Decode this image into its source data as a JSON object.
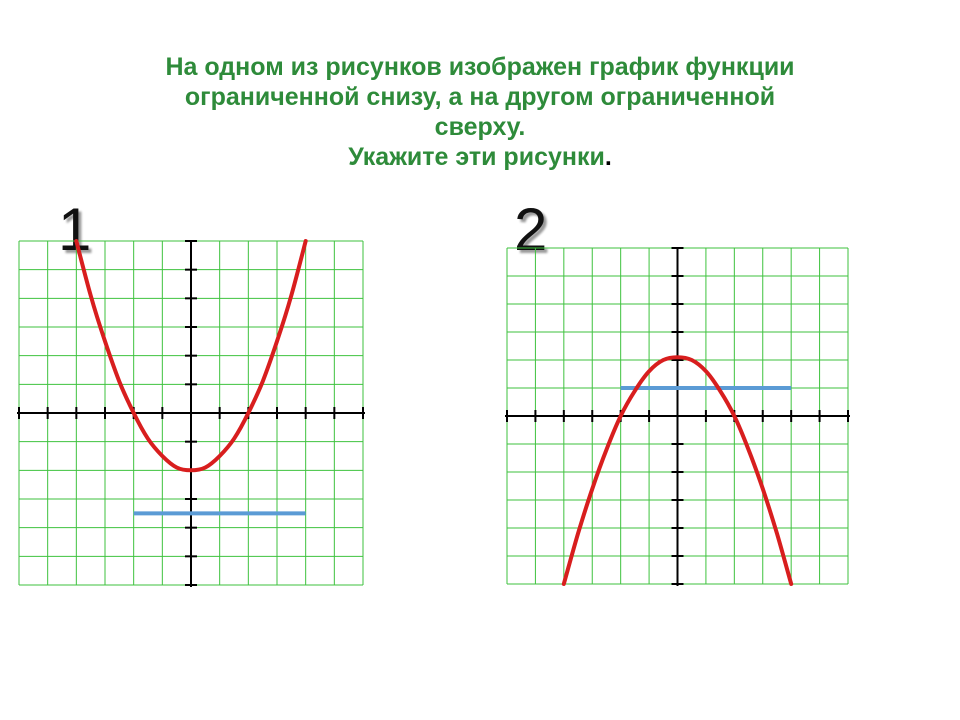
{
  "title": {
    "line1": "На одном из рисунков изображен график функции",
    "line2": "ограниченной снизу, а на другом ограниченной",
    "line3": "сверху.",
    "line4": "Укажите эти рисунки",
    "line4_end": "."
  },
  "colors": {
    "title": "#2e8b3a",
    "grid": "#3ec23e",
    "axes": "#000000",
    "curve": "#d81e1e",
    "bound": "#5b9bd5"
  },
  "chart_data": [
    {
      "type": "line",
      "label": "1",
      "function": "upward parabola",
      "xlim": [
        -6,
        6
      ],
      "ylim": [
        -6,
        6
      ],
      "grid": true,
      "series": [
        {
          "x": [
            -4,
            -3.5,
            -3,
            -2.5,
            -2,
            -1.5,
            -1,
            -0.5,
            0,
            0.5,
            1,
            1.5,
            2,
            2.5,
            3,
            3.5,
            4
          ],
          "y": [
            6,
            4.1,
            2.5,
            1.1,
            0,
            -0.9,
            -1.5,
            -1.9,
            -2,
            -1.9,
            -1.5,
            -0.9,
            0,
            1.1,
            2.5,
            4.1,
            6
          ]
        }
      ],
      "bound_line": {
        "y": -3.5,
        "x_from": -2,
        "x_to": 4
      }
    },
    {
      "type": "line",
      "label": "2",
      "function": "downward parabola",
      "xlim": [
        -6,
        6
      ],
      "ylim": [
        -6,
        6
      ],
      "grid": true,
      "series": [
        {
          "x": [
            -4,
            -3.5,
            -3,
            -2.5,
            -2,
            -1.5,
            -1,
            -0.5,
            0,
            0.5,
            1,
            1.5,
            2,
            2.5,
            3,
            3.5,
            4
          ],
          "y": [
            -6,
            -4.2,
            -2.6,
            -1.2,
            0,
            0.9,
            1.6,
            2,
            2.1,
            2,
            1.6,
            0.9,
            0,
            -1.2,
            -2.6,
            -4.2,
            -6
          ]
        }
      ],
      "bound_line": {
        "y": 1,
        "x_from": -2,
        "x_to": 4
      }
    }
  ]
}
